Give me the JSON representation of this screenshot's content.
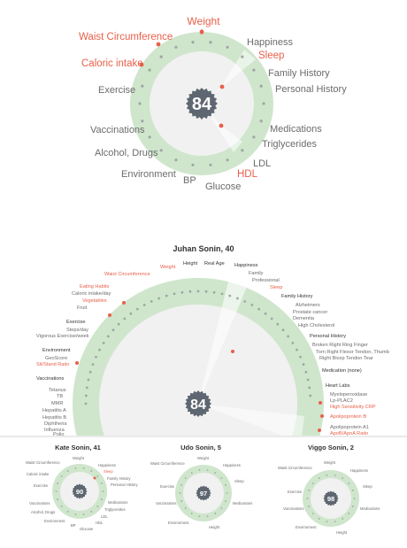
{
  "colors": {
    "ring": "#cfe6cc",
    "ring_dark": "#b6d8b2",
    "inner": "#f1f1f1",
    "badge": "#5e6671",
    "highlight": "#e8604a",
    "dot": "#9ea7a4"
  },
  "hero": {
    "score": "84",
    "labels": {
      "weight": "Weight",
      "waist": "Waist Circumference",
      "caloric": "Caloric intake",
      "exercise": "Exercise",
      "vaccinations": "Vaccinations",
      "alcohol": "Alcohol, Drugs",
      "environment": "Environment",
      "bp": "BP",
      "glucose": "Glucose",
      "hdl": "HDL",
      "ldl": "LDL",
      "triglycerides": "Triglycerides",
      "medications": "Medications",
      "personal_history": "Personal History",
      "family_history": "Family History",
      "sleep": "Sleep",
      "happiness": "Happiness"
    }
  },
  "detail": {
    "title": "Juhan Sonin, 40",
    "score": "84",
    "labels": {
      "weight": "Weight",
      "height": "Height",
      "real_age": "Real Age",
      "happiness": "Happiness",
      "family": "Family",
      "professional": "Professional",
      "sleep": "Sleep",
      "waist": "Waist Circumference",
      "eating_habits": "Eating Habits",
      "caloric_intake_day": "Caloric intake/day",
      "vegetables": "Vegetables",
      "fruit": "Fruit",
      "exercise": "Exercise",
      "steps_day": "Steps/day",
      "vigorous": "Vigorous Exercise/week",
      "environment": "Environment",
      "geoscore": "GeoScore",
      "sit_stand": "Sit/Stand Ratio",
      "vaccinations": "Vaccinations",
      "tetanus": "Tetanus",
      "tb": "TB",
      "mmr": "MMR",
      "hep_a": "Hepatitis A",
      "hep_b": "Hepatitis B",
      "diphtheria": "Diphtheria",
      "influenza": "Influenza",
      "polio": "Polio",
      "family_history": "Family History",
      "alzheimers": "Alzheimers",
      "prostate": "Prostate cancer",
      "dementia": "Dementia",
      "high_chol": "High Cholesterol",
      "personal_history": "Personal History",
      "broken_finger": "Broken Right Ring Finger",
      "torn_flexor": "Torn Right Flexor Tendon, Thumb",
      "torn_bicep": "Right Bicep Tendon Tear",
      "medication": "Medication (none)",
      "heart_labs": "Heart Labs",
      "myelo": "Myeloperoxidase",
      "lp_pla2": "Lp-PLAC2",
      "hs_crp": "High Sensitivity CRP",
      "apo_b": "Apolipoprotein B",
      "apo_a1": "Apolipoprotein A1",
      "apo_ratio": "ApoB/ApoA Ratio"
    }
  },
  "minis": [
    {
      "title": "Kate Sonin, 41",
      "score": "90",
      "labels": [
        "Weight",
        "Waist Circumference",
        "Happiness",
        "Sleep",
        "Family History",
        "Caloric intake",
        "Personal History",
        "Exercise",
        "Medications",
        "Vaccinations",
        "Triglycerides",
        "Alcohol, Drugs",
        "LDL",
        "Environment",
        "HDL",
        "BP",
        "Glucose"
      ]
    },
    {
      "title": "Udo Sonin, 5",
      "score": "97",
      "labels": [
        "Weight",
        "Waist Circumference",
        "Happiness",
        "Sleep",
        "Exercise",
        "Vaccinations",
        "Medications",
        "Environment",
        "Height"
      ]
    },
    {
      "title": "Viggo Sonin, 2",
      "score": "98",
      "labels": [
        "Weight",
        "Waist Circumference",
        "Happiness",
        "Sleep",
        "Exercise",
        "Vaccinations",
        "Medications",
        "Environment",
        "Height"
      ]
    }
  ]
}
